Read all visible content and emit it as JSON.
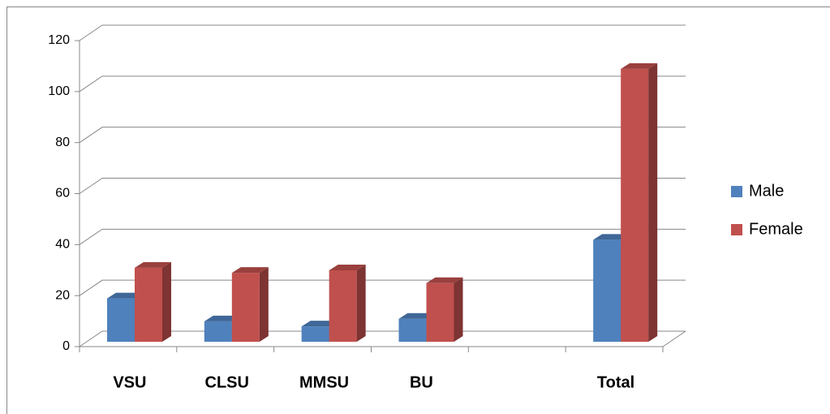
{
  "chart_data": {
    "type": "bar3d",
    "categories": [
      "VSU",
      "CLSU",
      "MMSU",
      "BU",
      null,
      "Total"
    ],
    "series": [
      {
        "name": "Male",
        "color": "#4f81bd",
        "values": [
          17,
          8,
          6,
          9,
          null,
          40
        ]
      },
      {
        "name": "Female",
        "color": "#c0504d",
        "values": [
          29,
          27,
          28,
          23,
          null,
          107
        ]
      }
    ],
    "ylim": [
      0,
      120
    ],
    "yticks": [
      0,
      20,
      40,
      60,
      80,
      100,
      120
    ],
    "grid": true,
    "legend": "right"
  }
}
